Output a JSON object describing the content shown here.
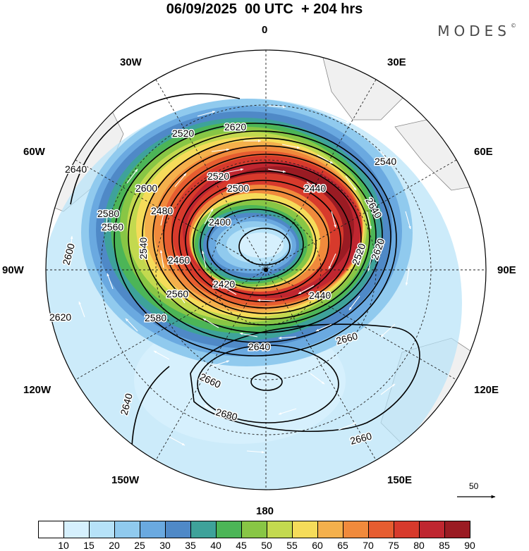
{
  "header": {
    "title": "06/09/2025  00 UTC  + 204 hrs",
    "logo": "MODES"
  },
  "lon_labels": [
    "0",
    "30E",
    "60E",
    "90E",
    "120E",
    "150E",
    "180",
    "150W",
    "120W",
    "90W",
    "60W",
    "30W"
  ],
  "wind_reference": {
    "value": "50"
  },
  "colorbar": {
    "ticks": [
      "10",
      "15",
      "20",
      "25",
      "30",
      "35",
      "40",
      "45",
      "50",
      "55",
      "60",
      "65",
      "70",
      "75",
      "80",
      "85",
      "90"
    ],
    "colors": [
      "#ffffff",
      "#d6f0fd",
      "#b6e2f8",
      "#90caee",
      "#6aa9e0",
      "#4f89c7",
      "#3ea29a",
      "#4cb557",
      "#88c645",
      "#c3d94f",
      "#f5dc5a",
      "#f4b04c",
      "#f08a3c",
      "#e65d30",
      "#d73a2c",
      "#bf2630",
      "#9a1b23"
    ]
  },
  "contours": {
    "labels": [
      "2620",
      "2520",
      "2540",
      "2640",
      "2600",
      "2520",
      "2440",
      "2580",
      "2480",
      "2560",
      "2400",
      "2540",
      "2500",
      "2460",
      "2520",
      "2420",
      "2440",
      "2580",
      "2560",
      "2600",
      "2620",
      "2660",
      "2660",
      "2640",
      "2640",
      "2680",
      "2660",
      "2620",
      "2640"
    ]
  }
}
